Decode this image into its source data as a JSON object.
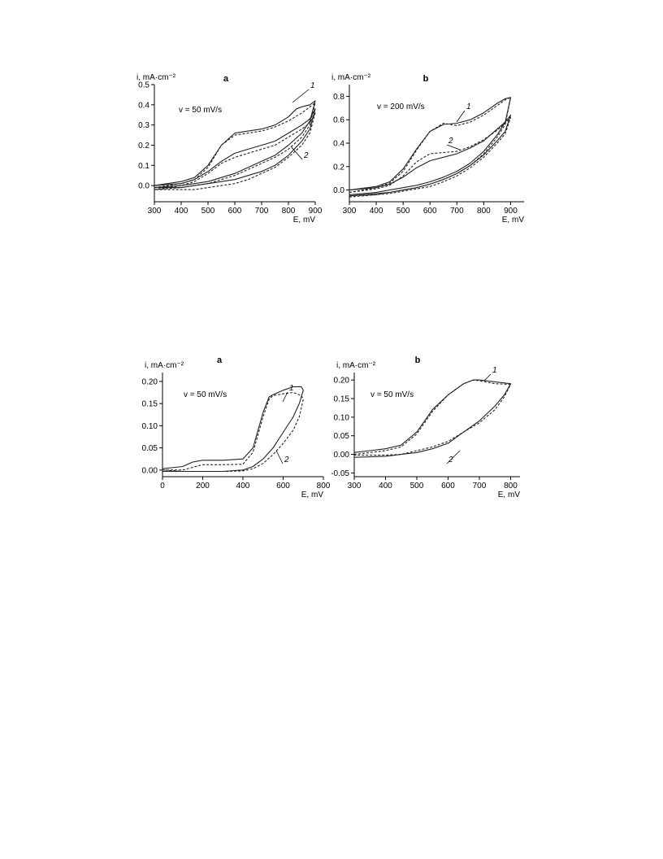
{
  "chart_data": [
    {
      "type": "line",
      "panel": "a",
      "ylabel": "i, mA·cm⁻²",
      "xlabel": "E, mV",
      "annotation": "v = 50 mV/s",
      "xlim": [
        300,
        900
      ],
      "ylim": [
        -0.08,
        0.5
      ],
      "xticks": [
        "300",
        "400",
        "500",
        "600",
        "700",
        "800",
        "900"
      ],
      "yticks": [
        "0.0",
        "0.1",
        "0.2",
        "0.3",
        "0.4",
        "0.5"
      ],
      "curve_labels": [
        "1",
        "2"
      ],
      "series": [
        {
          "style": "solid",
          "x": [
            300,
            400,
            450,
            500,
            550,
            600,
            650,
            700,
            750,
            800,
            830,
            850,
            880,
            900,
            880,
            850,
            800,
            750,
            700,
            650,
            600,
            550,
            500,
            450,
            400,
            300
          ],
          "y": [
            0.0,
            0.02,
            0.04,
            0.1,
            0.2,
            0.26,
            0.27,
            0.28,
            0.3,
            0.34,
            0.38,
            0.39,
            0.4,
            0.42,
            0.32,
            0.26,
            0.2,
            0.15,
            0.12,
            0.09,
            0.06,
            0.04,
            0.02,
            0.01,
            0.0,
            -0.01
          ]
        },
        {
          "style": "dashed",
          "x": [
            300,
            400,
            450,
            500,
            550,
            600,
            650,
            700,
            750,
            800,
            850,
            880,
            900,
            880,
            850,
            800,
            750,
            700,
            650,
            600,
            550,
            500,
            450,
            400,
            300
          ],
          "y": [
            -0.01,
            0.01,
            0.03,
            0.09,
            0.2,
            0.25,
            0.26,
            0.27,
            0.29,
            0.32,
            0.36,
            0.39,
            0.41,
            0.3,
            0.24,
            0.18,
            0.14,
            0.11,
            0.08,
            0.05,
            0.03,
            0.01,
            0.0,
            -0.01,
            -0.02
          ]
        },
        {
          "style": "solid",
          "x": [
            300,
            400,
            450,
            500,
            550,
            600,
            650,
            700,
            750,
            800,
            850,
            880,
            900,
            880,
            850,
            800,
            750,
            700,
            650,
            600,
            550,
            500,
            450,
            400,
            300
          ],
          "y": [
            0.0,
            0.01,
            0.03,
            0.07,
            0.12,
            0.16,
            0.18,
            0.2,
            0.22,
            0.26,
            0.3,
            0.33,
            0.38,
            0.28,
            0.22,
            0.15,
            0.1,
            0.07,
            0.05,
            0.03,
            0.02,
            0.01,
            0.0,
            -0.01,
            -0.01
          ]
        },
        {
          "style": "dashed",
          "x": [
            300,
            400,
            450,
            500,
            550,
            600,
            650,
            700,
            750,
            800,
            850,
            880,
            900,
            880,
            850,
            800,
            750,
            700,
            650,
            600,
            550,
            500,
            450,
            400,
            300
          ],
          "y": [
            -0.02,
            0.0,
            0.02,
            0.06,
            0.11,
            0.14,
            0.16,
            0.18,
            0.2,
            0.24,
            0.28,
            0.31,
            0.36,
            0.26,
            0.2,
            0.14,
            0.09,
            0.06,
            0.03,
            0.01,
            0.0,
            -0.01,
            -0.02,
            -0.02,
            -0.02
          ]
        }
      ]
    },
    {
      "type": "line",
      "panel": "b",
      "ylabel": "i, mA·cm⁻²",
      "xlabel": "E, mV",
      "annotation": "v = 200 mV/s",
      "xlim": [
        300,
        950
      ],
      "ylim": [
        -0.1,
        0.9
      ],
      "xticks": [
        "300",
        "400",
        "500",
        "600",
        "700",
        "800",
        "900"
      ],
      "yticks": [
        "0.0",
        "0.2",
        "0.4",
        "0.6",
        "0.8"
      ],
      "curve_labels": [
        "1",
        "2"
      ],
      "series": [
        {
          "style": "solid",
          "x": [
            300,
            400,
            450,
            500,
            550,
            600,
            650,
            700,
            750,
            800,
            850,
            880,
            900,
            880,
            850,
            800,
            750,
            700,
            650,
            600,
            550,
            500,
            450,
            400,
            300
          ],
          "y": [
            0.0,
            0.03,
            0.07,
            0.18,
            0.35,
            0.5,
            0.56,
            0.57,
            0.6,
            0.66,
            0.74,
            0.78,
            0.79,
            0.58,
            0.47,
            0.33,
            0.23,
            0.16,
            0.11,
            0.07,
            0.04,
            0.02,
            0.0,
            -0.02,
            -0.04
          ]
        },
        {
          "style": "dashed",
          "x": [
            300,
            400,
            450,
            500,
            550,
            600,
            650,
            700,
            750,
            800,
            850,
            880,
            900,
            880,
            850,
            800,
            750,
            700,
            650,
            600,
            550,
            500,
            450,
            400,
            300
          ],
          "y": [
            -0.02,
            0.02,
            0.06,
            0.16,
            0.34,
            0.5,
            0.57,
            0.55,
            0.58,
            0.64,
            0.72,
            0.77,
            0.79,
            0.56,
            0.45,
            0.31,
            0.21,
            0.14,
            0.09,
            0.05,
            0.02,
            0.0,
            -0.02,
            -0.04,
            -0.05
          ]
        },
        {
          "style": "solid",
          "x": [
            300,
            400,
            450,
            500,
            550,
            600,
            650,
            700,
            750,
            800,
            850,
            880,
            900,
            880,
            850,
            800,
            750,
            700,
            650,
            600,
            550,
            500,
            450,
            400,
            300
          ],
          "y": [
            0.0,
            0.02,
            0.05,
            0.11,
            0.19,
            0.25,
            0.28,
            0.31,
            0.36,
            0.42,
            0.52,
            0.58,
            0.64,
            0.5,
            0.42,
            0.3,
            0.21,
            0.14,
            0.09,
            0.05,
            0.02,
            0.0,
            -0.02,
            -0.03,
            -0.05
          ]
        },
        {
          "style": "dashed",
          "x": [
            300,
            400,
            450,
            500,
            550,
            600,
            650,
            700,
            750,
            800,
            850,
            880,
            900,
            880,
            850,
            800,
            750,
            700,
            650,
            600,
            550,
            500,
            450,
            400,
            300
          ],
          "y": [
            -0.02,
            0.01,
            0.04,
            0.12,
            0.24,
            0.31,
            0.32,
            0.33,
            0.37,
            0.43,
            0.51,
            0.57,
            0.62,
            0.48,
            0.4,
            0.28,
            0.19,
            0.12,
            0.07,
            0.03,
            0.01,
            -0.01,
            -0.03,
            -0.04,
            -0.06
          ]
        }
      ]
    },
    {
      "type": "line",
      "panel": "a",
      "ylabel": "i, mA·cm⁻²",
      "xlabel": "E, mV",
      "annotation": "v = 50 mV/s",
      "xlim": [
        0,
        800
      ],
      "ylim": [
        -0.015,
        0.22
      ],
      "xticks": [
        "0",
        "200",
        "400",
        "600",
        "800"
      ],
      "yticks": [
        "0.00",
        "0.05",
        "0.10",
        "0.15",
        "0.20"
      ],
      "curve_labels": [
        "1",
        "2"
      ],
      "series": [
        {
          "style": "solid",
          "x": [
            0,
            100,
            150,
            200,
            300,
            400,
            450,
            500,
            530,
            550,
            600,
            650,
            690,
            700,
            680,
            650,
            600,
            550,
            500,
            450,
            400,
            300,
            200,
            100,
            0
          ],
          "y": [
            0.003,
            0.008,
            0.018,
            0.022,
            0.022,
            0.025,
            0.05,
            0.13,
            0.165,
            0.17,
            0.18,
            0.188,
            0.188,
            0.18,
            0.15,
            0.12,
            0.085,
            0.05,
            0.025,
            0.008,
            0.0,
            -0.003,
            -0.003,
            -0.003,
            -0.003
          ]
        },
        {
          "style": "dashed",
          "x": [
            0,
            100,
            150,
            200,
            300,
            400,
            450,
            500,
            530,
            550,
            600,
            650,
            690,
            700,
            680,
            650,
            600,
            550,
            500,
            450,
            400,
            300,
            200,
            100,
            0
          ],
          "y": [
            0.0,
            0.0,
            0.006,
            0.012,
            0.012,
            0.013,
            0.04,
            0.12,
            0.16,
            0.168,
            0.172,
            0.175,
            0.168,
            0.16,
            0.12,
            0.09,
            0.06,
            0.035,
            0.015,
            0.003,
            -0.002,
            -0.003,
            -0.003,
            -0.003,
            0.0
          ]
        }
      ]
    },
    {
      "type": "line",
      "panel": "b",
      "ylabel": "i, mA·cm⁻²",
      "xlabel": "E, mV",
      "annotation": "v = 50 mV/s",
      "xlim": [
        300,
        830
      ],
      "ylim": [
        -0.06,
        0.22
      ],
      "xticks": [
        "300",
        "400",
        "500",
        "600",
        "700",
        "800"
      ],
      "yticks": [
        "-0.05",
        "0.00",
        "0.05",
        "0.10",
        "0.15",
        "0.20"
      ],
      "curve_labels": [
        "1",
        "2"
      ],
      "series": [
        {
          "style": "solid",
          "x": [
            300,
            350,
            400,
            450,
            500,
            550,
            600,
            650,
            680,
            700,
            750,
            800,
            780,
            750,
            700,
            650,
            600,
            550,
            500,
            450,
            400,
            300
          ],
          "y": [
            0.005,
            0.01,
            0.015,
            0.025,
            0.06,
            0.12,
            0.16,
            0.19,
            0.2,
            0.2,
            0.195,
            0.19,
            0.16,
            0.13,
            0.09,
            0.06,
            0.03,
            0.015,
            0.005,
            0.0,
            -0.005,
            -0.008
          ]
        },
        {
          "style": "dashed",
          "x": [
            300,
            350,
            400,
            450,
            500,
            550,
            600,
            650,
            680,
            700,
            750,
            800,
            780,
            750,
            700,
            650,
            600,
            550,
            500,
            450,
            400,
            300
          ],
          "y": [
            0.0,
            0.005,
            0.01,
            0.02,
            0.055,
            0.115,
            0.16,
            0.19,
            0.2,
            0.198,
            0.19,
            0.188,
            0.155,
            0.12,
            0.085,
            0.06,
            0.035,
            0.02,
            0.01,
            0.0,
            -0.002,
            -0.002
          ]
        }
      ]
    }
  ]
}
